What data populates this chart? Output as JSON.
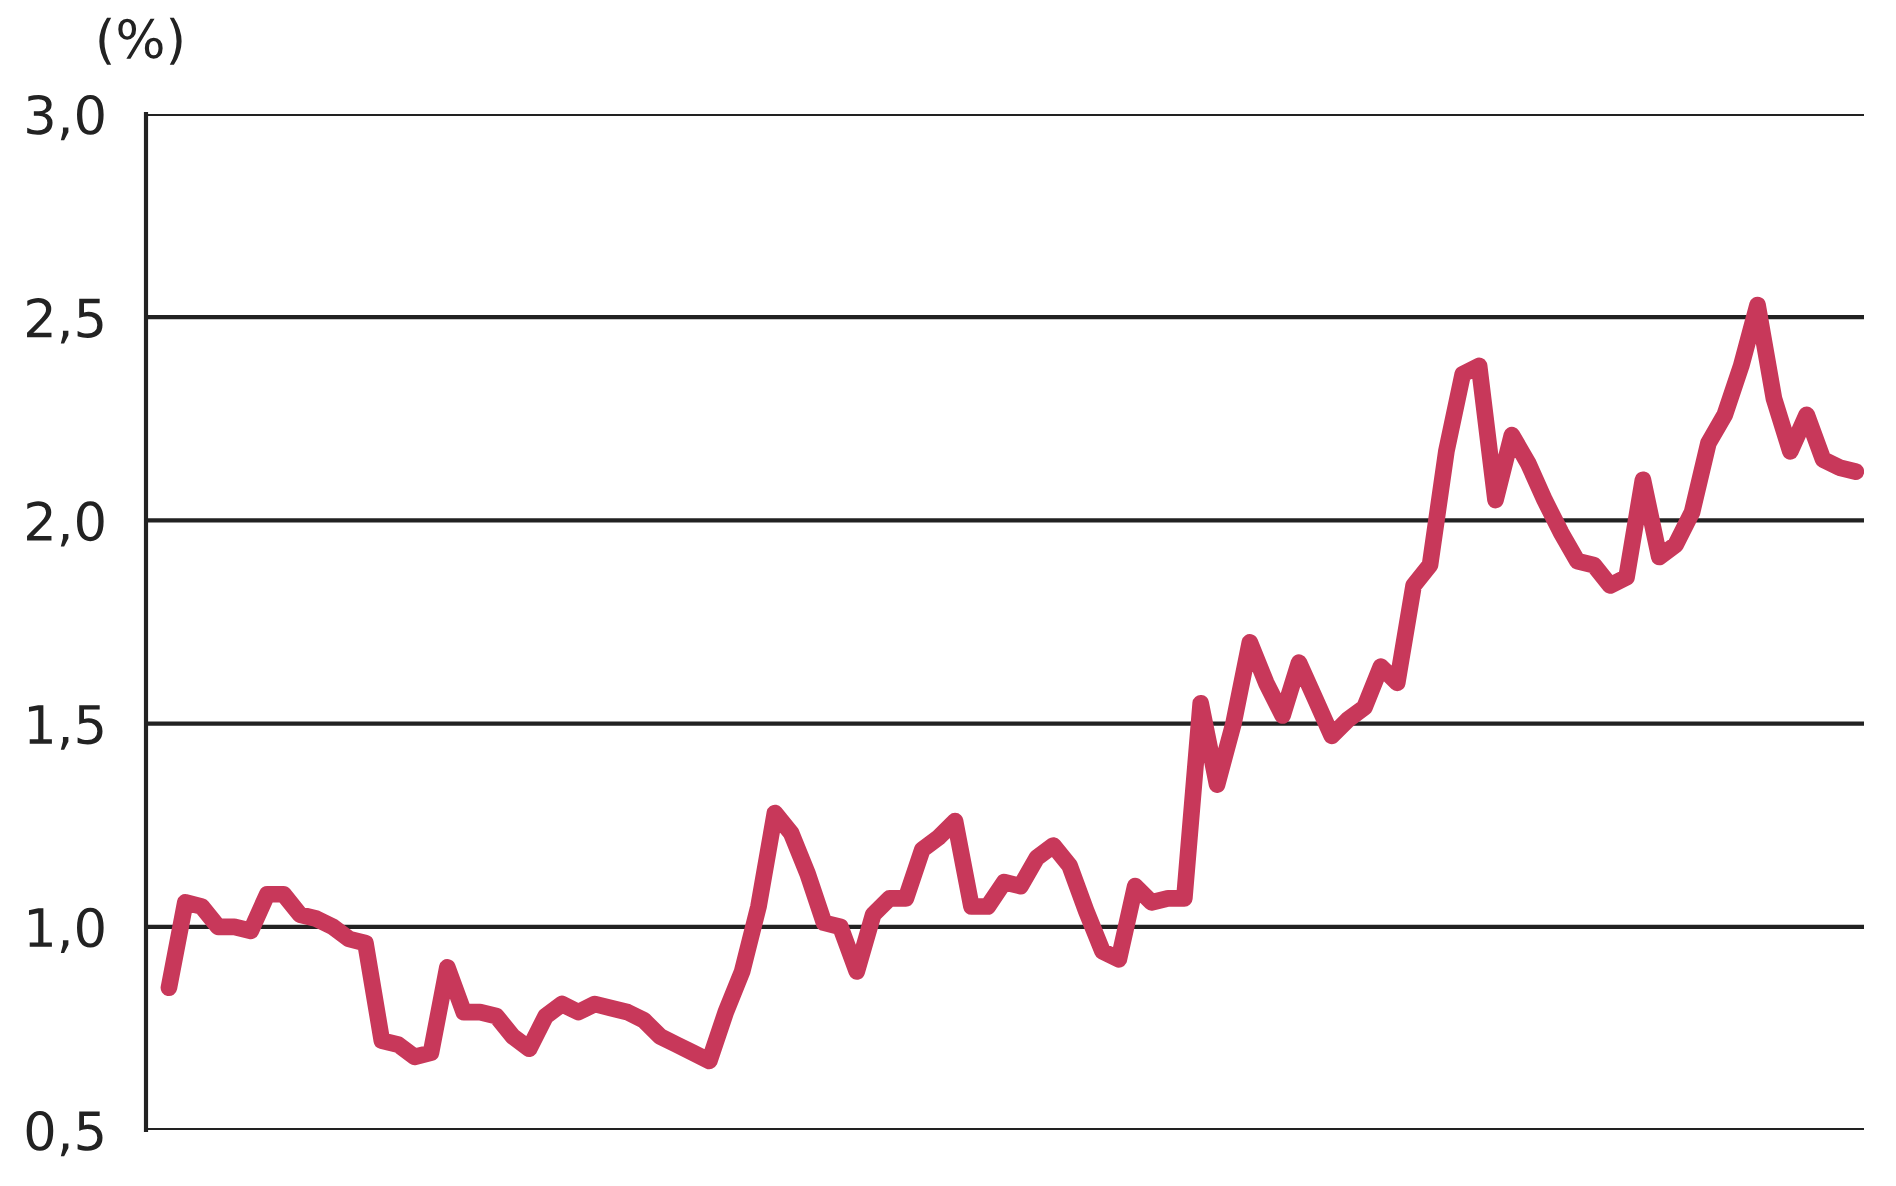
{
  "chart_data": {
    "type": "line",
    "title": "(%)",
    "categories": [
      null,
      null,
      null,
      null,
      null,
      null,
      null,
      null,
      null,
      null,
      null,
      null,
      null,
      null,
      null,
      null,
      null,
      null,
      null,
      null,
      null,
      null,
      null,
      null,
      null,
      null,
      null,
      null,
      null,
      null,
      null,
      null,
      null,
      null,
      null,
      null,
      null,
      null,
      null,
      null,
      null,
      null,
      null,
      null,
      null,
      null,
      null,
      null,
      null,
      null,
      null,
      null,
      null,
      null,
      null,
      null,
      null,
      null,
      null,
      null,
      null,
      null,
      null,
      null,
      null,
      null,
      null,
      null,
      null,
      null,
      null,
      null,
      null,
      null,
      null,
      null,
      null,
      null,
      null,
      null,
      null,
      null,
      null,
      null,
      null,
      null,
      null,
      null,
      null,
      null,
      null,
      null,
      null,
      null,
      null,
      null,
      null,
      null,
      null,
      null,
      null,
      null,
      null,
      null
    ],
    "series": [
      {
        "color": "#c8385a",
        "values": [
          0.85,
          1.06,
          1.05,
          1.0,
          1.0,
          0.99,
          1.08,
          1.08,
          1.03,
          1.02,
          1.0,
          0.97,
          0.96,
          0.72,
          0.71,
          0.68,
          0.69,
          0.9,
          0.79,
          0.79,
          0.78,
          0.73,
          0.7,
          0.78,
          0.81,
          0.79,
          0.81,
          0.8,
          0.79,
          0.77,
          0.73,
          0.71,
          0.69,
          0.67,
          0.79,
          0.89,
          1.05,
          1.28,
          1.23,
          1.13,
          1.01,
          1.0,
          0.89,
          1.03,
          1.07,
          1.07,
          1.19,
          1.22,
          1.26,
          1.05,
          1.05,
          1.11,
          1.1,
          1.17,
          1.2,
          1.15,
          1.04,
          0.94,
          0.92,
          1.1,
          1.06,
          1.07,
          1.07,
          1.55,
          1.35,
          1.5,
          1.7,
          1.6,
          1.52,
          1.65,
          1.56,
          1.47,
          1.51,
          1.54,
          1.64,
          1.6,
          1.84,
          1.89,
          2.17,
          2.36,
          2.38,
          2.05,
          2.21,
          2.14,
          2.05,
          1.97,
          1.9,
          1.89,
          1.84,
          1.86,
          2.1,
          1.91,
          1.94,
          2.02,
          2.19,
          2.26,
          2.38,
          2.53,
          2.3,
          2.17,
          2.26,
          2.15,
          2.13,
          2.12
        ]
      }
    ],
    "ylim": [
      0.5,
      3.0
    ],
    "yticks": [
      {
        "value": 0.5,
        "label": "0,5"
      },
      {
        "value": 1.0,
        "label": "1,0"
      },
      {
        "value": 1.5,
        "label": "1,5"
      },
      {
        "value": 2.0,
        "label": "2,0"
      },
      {
        "value": 2.5,
        "label": "2,5"
      },
      {
        "value": 3.0,
        "label": "3,0"
      }
    ],
    "grid": "y",
    "tick_labels": "y",
    "line_style": "solid"
  }
}
